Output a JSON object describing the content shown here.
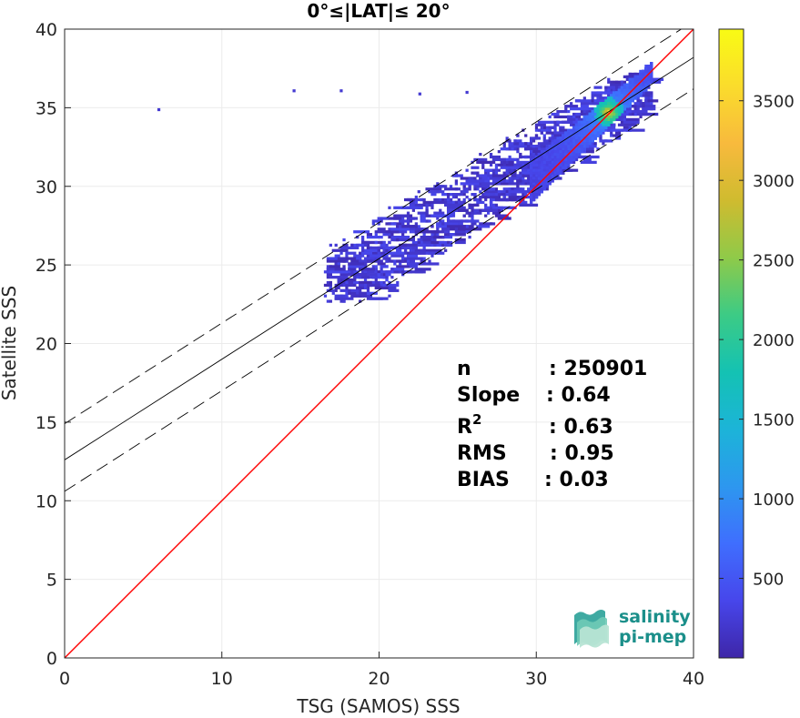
{
  "chart_data": {
    "type": "heatmap",
    "title": "0°≤|LAT|≤ 20°",
    "xlabel": "TSG (SAMOS) SSS",
    "ylabel": "Satellite SSS",
    "xlim": [
      0,
      40
    ],
    "ylim": [
      0,
      40
    ],
    "xticks": [
      "0",
      "10",
      "20",
      "30",
      "40"
    ],
    "yticks": [
      "0",
      "5",
      "10",
      "15",
      "20",
      "25",
      "30",
      "35",
      "40"
    ],
    "grid": true,
    "colorbar": {
      "range": [
        0,
        3950
      ],
      "ticks": [
        "500",
        "1000",
        "1500",
        "2000",
        "2500",
        "3000",
        "3500"
      ],
      "tick_values": [
        500,
        1000,
        1500,
        2000,
        2500,
        3000,
        3500
      ],
      "colormap": [
        "#3e26a8",
        "#4746eb",
        "#3f6efe",
        "#2d97ef",
        "#1cb4d8",
        "#14c2b3",
        "#3ccb85",
        "#8fca49",
        "#cfbb2f",
        "#f8ba3d",
        "#fadc2c",
        "#f9fb14"
      ]
    },
    "lines": {
      "one_to_one": {
        "slope": 1,
        "intercept": 0,
        "color": "#ff0000"
      },
      "regression": {
        "slope": 0.64,
        "intercept": 12.6,
        "color": "#000000"
      },
      "regression_upper": {
        "slope": 0.64,
        "intercept": 14.9,
        "style": "dashed"
      },
      "regression_lower": {
        "slope": 0.64,
        "intercept": 10.6,
        "style": "dashed"
      }
    },
    "density": {
      "core": {
        "x": 34.5,
        "y": 34.6,
        "peak": 3950
      },
      "band": {
        "x_start": 29.5,
        "x_end": 37.3
      },
      "outliers": [
        {
          "x": 5.9,
          "y": 34.8
        },
        {
          "x": 14.5,
          "y": 36.0
        },
        {
          "x": 17.5,
          "y": 36.0
        },
        {
          "x": 22.5,
          "y": 35.8
        },
        {
          "x": 25.5,
          "y": 35.9
        }
      ]
    },
    "stats": [
      {
        "label": "n",
        "value": ": 250901"
      },
      {
        "label": "Slope",
        "value": ": 0.64"
      },
      {
        "label": "R",
        "sup": "2",
        "value": ": 0.63"
      },
      {
        "label": "RMS",
        "value": ": 0.95"
      },
      {
        "label": "BIAS",
        "value": ": 0.03"
      }
    ]
  },
  "logo": {
    "line1": "salinity",
    "line2": "pi-mep"
  }
}
